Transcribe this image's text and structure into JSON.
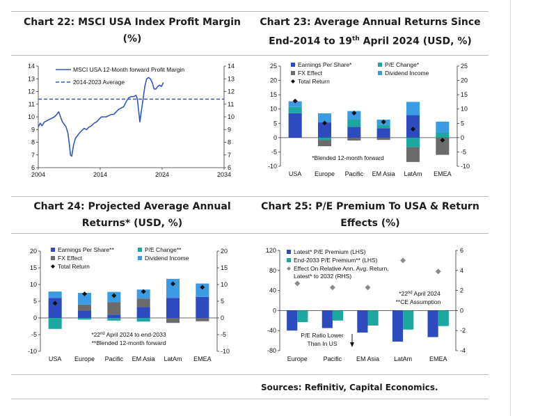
{
  "chart_data": [
    {
      "id": "c22",
      "type": "line",
      "title_main": "Chart 22:  MSCI USA Index Profit Margin",
      "title_tail": "(%)",
      "xlim": [
        2004,
        2034
      ],
      "ylim": [
        6,
        14
      ],
      "xticks": [
        "2004",
        "2014",
        "2024",
        "2034"
      ],
      "yticks": [
        "6",
        "7",
        "8",
        "9",
        "10",
        "11",
        "12",
        "13",
        "14"
      ],
      "legend": [
        "MSCI USA 12-Month forward Profit Margin",
        "2014-2023 Average"
      ],
      "average": 11.4,
      "x": [
        2004.0,
        2004.3,
        2004.6,
        2005.0,
        2005.4,
        2005.8,
        2006.2,
        2006.6,
        2007.0,
        2007.3,
        2007.6,
        2007.9,
        2008.2,
        2008.5,
        2008.8,
        2009.0,
        2009.2,
        2009.4,
        2009.7,
        2010.0,
        2010.3,
        2010.6,
        2011.0,
        2011.4,
        2011.8,
        2012.2,
        2012.6,
        2013.0,
        2013.4,
        2013.8,
        2014.2,
        2014.6,
        2015.0,
        2015.4,
        2015.8,
        2016.2,
        2016.6,
        2017.0,
        2017.4,
        2017.8,
        2018.2,
        2018.6,
        2019.0,
        2019.4,
        2019.8,
        2020.0,
        2020.2,
        2020.4,
        2020.6,
        2020.9,
        2021.2,
        2021.5,
        2021.8,
        2022.1,
        2022.4,
        2022.7,
        2023.0,
        2023.3,
        2023.6,
        2023.9,
        2024.2
      ],
      "y": [
        9.2,
        9.5,
        9.3,
        9.6,
        9.7,
        9.8,
        9.9,
        10.0,
        10.2,
        10.4,
        10.0,
        9.6,
        9.4,
        9.2,
        8.7,
        7.9,
        7.0,
        6.9,
        7.8,
        8.3,
        8.5,
        8.7,
        8.9,
        9.1,
        9.0,
        9.2,
        9.3,
        9.5,
        9.6,
        9.8,
        10.0,
        10.0,
        10.0,
        10.1,
        10.2,
        10.2,
        10.4,
        10.6,
        10.7,
        10.8,
        11.2,
        11.5,
        11.6,
        11.6,
        11.7,
        11.4,
        10.5,
        9.6,
        10.3,
        11.3,
        12.4,
        13.0,
        13.1,
        13.0,
        12.7,
        12.2,
        12.2,
        12.4,
        12.5,
        12.4,
        12.7
      ]
    },
    {
      "id": "c23",
      "type": "bar",
      "title_main": "Chart 23: Average Annual Returns Since",
      "title_pre": "End-2014 to 19",
      "title_sup": "th",
      "title_post": " April 2024 (USD, %)",
      "ylim": [
        -10,
        25
      ],
      "yticks": [
        "-10",
        "-5",
        "0",
        "5",
        "10",
        "15",
        "20",
        "25"
      ],
      "categories": [
        "USA",
        "Europe",
        "Pacific",
        "EM Asia",
        "LatAm",
        "EMEA"
      ],
      "legend": [
        "Earnings Per Share*",
        "P/E Change*",
        "FX Effect",
        "Dividend Income",
        "Total Return"
      ],
      "note": "*Blended 12-month forward",
      "series": [
        {
          "name": "Earnings Per Share*",
          "color": "#2d4bbf",
          "values": [
            8.5,
            5.3,
            3.8,
            3.3,
            7.9,
            0
          ]
        },
        {
          "name": "P/E Change*",
          "color": "#1ca8a0",
          "values": [
            2.2,
            -0.8,
            2.6,
            1.2,
            -3.3,
            1.8
          ]
        },
        {
          "name": "FX Effect",
          "color": "#6b6b6b",
          "values": [
            0,
            -2.2,
            -1.0,
            -0.8,
            -5.2,
            -6.0
          ]
        },
        {
          "name": "Dividend Income",
          "color": "#3b9ce3",
          "values": [
            2.0,
            3.2,
            2.9,
            1.8,
            4.6,
            3.8
          ]
        }
      ],
      "total_return": [
        12.8,
        5.1,
        8.6,
        5.5,
        3.0,
        -0.9
      ]
    },
    {
      "id": "c24",
      "type": "bar",
      "title_main": "Chart 24: Projected Average Annual",
      "title_tail": "Returns* (USD, %)",
      "ylim": [
        -10,
        20
      ],
      "yticks": [
        "-10",
        "-5",
        "0",
        "5",
        "10",
        "15",
        "20"
      ],
      "categories": [
        "USA",
        "Europe",
        "Pacific",
        "EM Asia",
        "LatAm",
        "EMEA"
      ],
      "legend": [
        "Earnings Per Share**",
        "P/E Change**",
        "FX Effect",
        "Dividend Income",
        "Total Return"
      ],
      "note_pre": "*22",
      "note_sup": "nd",
      "note_post": " April 2024 to end-2033",
      "note2": "**Blended 12-month forward",
      "series": [
        {
          "name": "Earnings Per Share**",
          "color": "#2d4bbf",
          "values": [
            6.0,
            2.2,
            1.0,
            3.3,
            6.0,
            6.3
          ]
        },
        {
          "name": "P/E Change**",
          "color": "#1ca8a0",
          "values": [
            -3.3,
            -0.5,
            -0.8,
            -1.1,
            0,
            0
          ]
        },
        {
          "name": "FX Effect",
          "color": "#6b6b6b",
          "values": [
            0,
            1.8,
            3.7,
            2.5,
            -1.5,
            -1.0
          ]
        },
        {
          "name": "Dividend Income",
          "color": "#3b9ce3",
          "values": [
            1.9,
            3.5,
            3.1,
            2.7,
            5.7,
            4.0
          ]
        }
      ],
      "total_return": [
        4.4,
        7.2,
        6.7,
        7.9,
        10.2,
        9.2
      ]
    },
    {
      "id": "c25",
      "type": "bar",
      "title_main": "Chart 25: P/E Premium To USA & Return",
      "title_tail": "Effects (%)",
      "ylim_left": [
        -80,
        120
      ],
      "ylim_right": [
        -4,
        6
      ],
      "yticks_left": [
        "-80",
        "-40",
        "0",
        "40",
        "80",
        "120"
      ],
      "yticks_right": [
        "-4",
        "-2",
        "0",
        "2",
        "4",
        "6"
      ],
      "categories": [
        "Europe",
        "Pacific",
        "EM Asia",
        "LatAm",
        "EMEA"
      ],
      "legend": [
        "Latest* P/E Premium (LHS)",
        "End-2033 P/E Premium** (LHS)",
        "Effect On Relative Ann. Avg. Return,",
        "Latest* to 2032 (RHS)"
      ],
      "note_pre": "*22",
      "note_sup": "nd",
      "note_post": " April 2024",
      "note2": "**CE Assumption",
      "annotation": [
        "P/E Ratio Lower",
        "Than In US"
      ],
      "series": [
        {
          "name": "Latest* P/E Premium (LHS)",
          "color": "#2d4bbf",
          "values": [
            -40,
            -35,
            -44,
            -62,
            -53
          ]
        },
        {
          "name": "End-2033 P/E Premium** (LHS)",
          "color": "#1ca8a0",
          "values": [
            -23,
            -20,
            -30,
            -38,
            -31
          ]
        }
      ],
      "effect_rhs": [
        2.7,
        2.3,
        2.3,
        5.0,
        3.9
      ]
    }
  ],
  "source": "Sources: Refinitiv, Capital Economics."
}
